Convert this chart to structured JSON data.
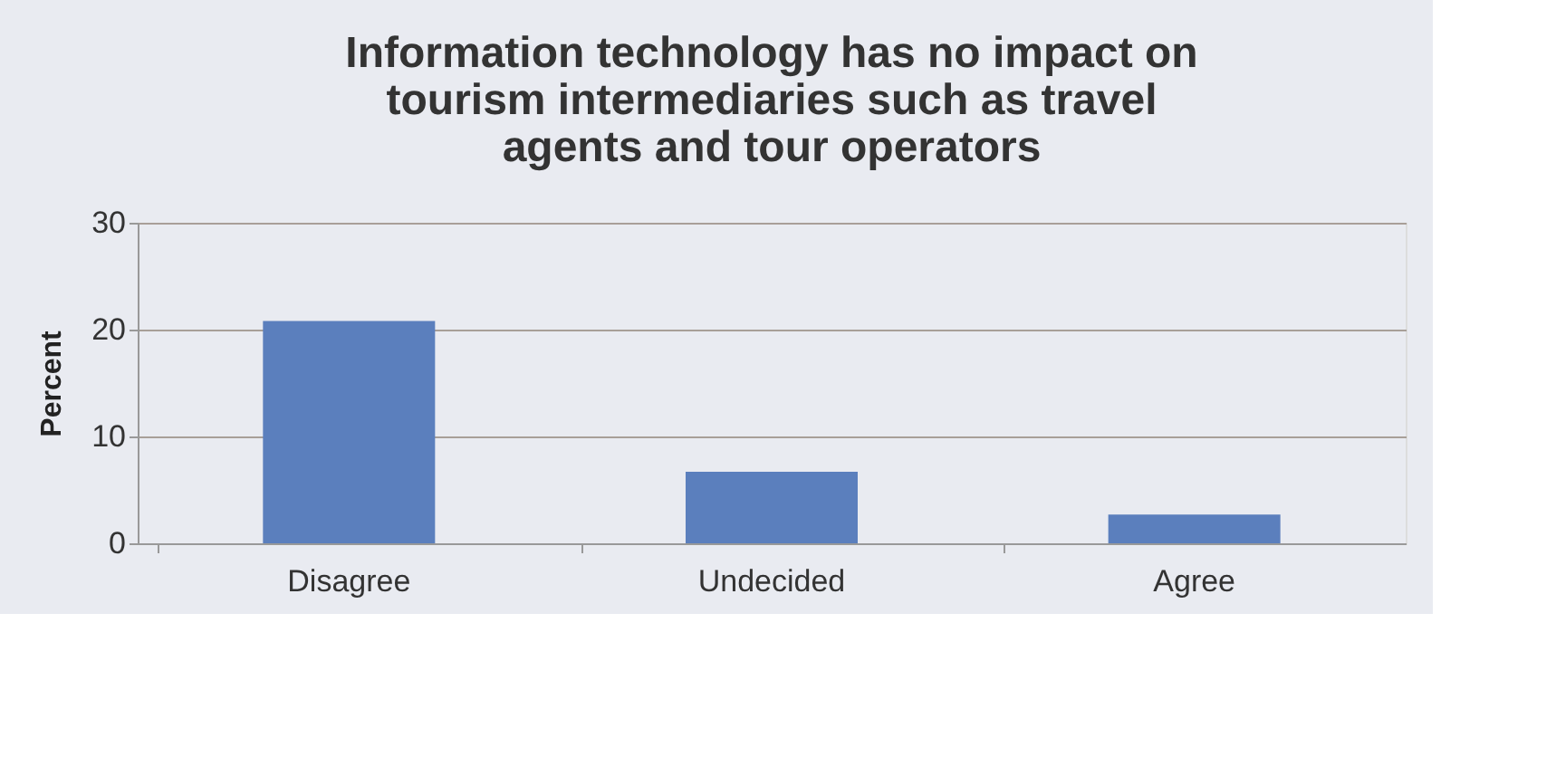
{
  "chart_data": {
    "type": "bar",
    "title": "Information technology has no impact on tourism intermediaries such as travel agents and tour operators",
    "ylabel": "Percent",
    "categories": [
      "Disagree",
      "Undecided",
      "Agree"
    ],
    "values": [
      20.8,
      6.7,
      2.7
    ],
    "color": "#5b7fbd",
    "ylim": [
      0,
      30
    ],
    "yticks": [
      0,
      10,
      20,
      30
    ],
    "grid": "y"
  }
}
